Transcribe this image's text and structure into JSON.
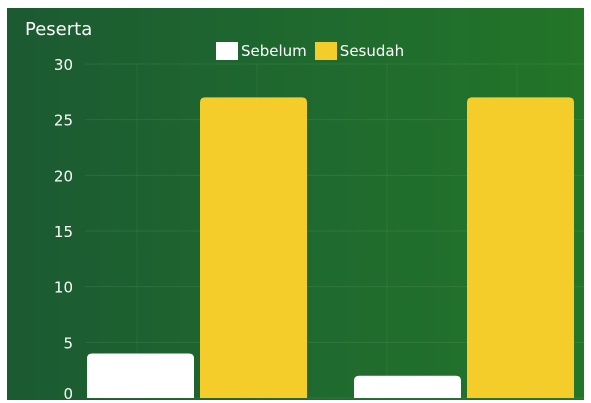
{
  "chart_data": {
    "type": "bar",
    "title": "Peserta",
    "categories": [
      "",
      ""
    ],
    "series": [
      {
        "name": "Sebelum",
        "values": [
          4,
          2
        ],
        "color": "#ffffff"
      },
      {
        "name": "Sesudah",
        "values": [
          27,
          27
        ],
        "color": "#f5cd2a"
      }
    ],
    "ylim": [
      0,
      30
    ],
    "yticks": [
      0,
      5,
      10,
      15,
      20,
      25,
      30
    ],
    "grid": true,
    "legend_position": "top-center",
    "background_color": "#1f6530"
  }
}
